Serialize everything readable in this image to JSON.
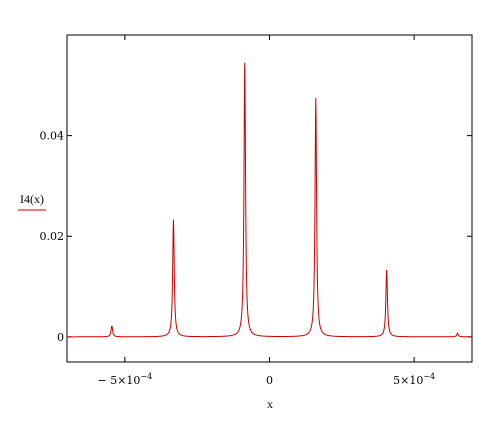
{
  "chart_data": {
    "type": "line",
    "ylabel": "I4(x)",
    "xlabel": "x",
    "xlim": [
      -0.0007,
      0.0007
    ],
    "ylim": [
      -0.005,
      0.06
    ],
    "x_ticks": [
      {
        "value": -0.0005,
        "label": "− 5×10",
        "exp": "−4"
      },
      {
        "value": 0,
        "label": "0",
        "exp": ""
      },
      {
        "value": 0.0005,
        "label": "5×10",
        "exp": "−4"
      }
    ],
    "y_ticks": [
      {
        "value": 0,
        "label": "0"
      },
      {
        "value": 0.02,
        "label": "0.02"
      },
      {
        "value": 0.04,
        "label": "0.04"
      }
    ],
    "grid": false,
    "series": [
      {
        "color": "#cc0000",
        "peaks": [
          {
            "center": -0.000545,
            "height": 0.0022
          },
          {
            "center": -0.000332,
            "height": 0.0233
          },
          {
            "center": -8.55e-05,
            "height": 0.0545
          },
          {
            "center": 0.00016,
            "height": 0.0475
          },
          {
            "center": 0.000405,
            "height": 0.0133
          },
          {
            "center": 0.00065,
            "height": 0.0007
          }
        ],
        "baseline": 0
      }
    ]
  }
}
